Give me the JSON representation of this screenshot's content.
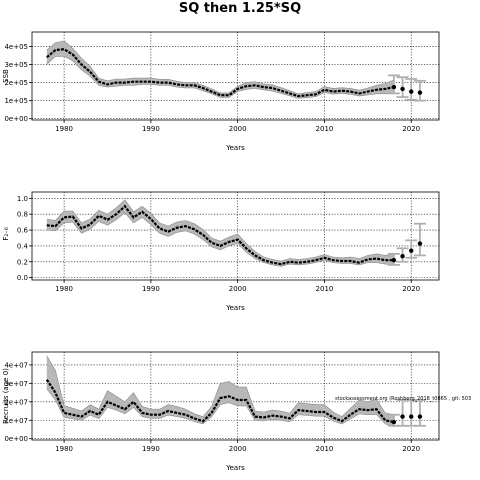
{
  "title": "SQ then 1.25*SQ",
  "chart_data": [
    {
      "type": "line",
      "xlabel": "Years",
      "ylabel": "SSB",
      "xlim": [
        1976.3,
        2023.2
      ],
      "ylim": [
        -7000,
        480000
      ],
      "xticks": [
        1980,
        1990,
        2000,
        2010,
        2020
      ],
      "yticks": [
        0,
        100000,
        200000,
        300000,
        400000
      ],
      "ytick_labels": [
        "0e+00",
        "1e+05",
        "2e+05",
        "3e+05",
        "4e+05"
      ],
      "grid": true,
      "note": "",
      "series": [
        {
          "x": [
            1978,
            1979,
            1980,
            1981,
            1982,
            1983,
            1984,
            1985,
            1986,
            1987,
            1988,
            1989,
            1990,
            1991,
            1992,
            1993,
            1994,
            1995,
            1996,
            1997,
            1998,
            1999,
            2000,
            2001,
            2002,
            2003,
            2004,
            2005,
            2006,
            2007,
            2008,
            2009,
            2010,
            2011,
            2012,
            2013,
            2014,
            2015,
            2016,
            2017,
            2018
          ],
          "values": [
            340000,
            380000,
            385000,
            355000,
            300000,
            260000,
            205000,
            190000,
            200000,
            200000,
            205000,
            205000,
            205000,
            200000,
            200000,
            190000,
            185000,
            185000,
            170000,
            150000,
            130000,
            130000,
            165000,
            180000,
            185000,
            175000,
            170000,
            155000,
            140000,
            125000,
            130000,
            135000,
            160000,
            150000,
            155000,
            150000,
            140000,
            150000,
            160000,
            165000,
            175000
          ],
          "lower": [
            300000,
            345000,
            345000,
            320000,
            270000,
            235000,
            185000,
            175000,
            180000,
            185000,
            185000,
            190000,
            190000,
            185000,
            185000,
            175000,
            170000,
            170000,
            155000,
            138000,
            118000,
            118000,
            150000,
            163000,
            168000,
            160000,
            153000,
            140000,
            127000,
            113000,
            117000,
            122000,
            145000,
            136000,
            140000,
            135000,
            125000,
            132000,
            138000,
            138000,
            140000
          ],
          "upper": [
            380000,
            420000,
            430000,
            390000,
            335000,
            290000,
            225000,
            210000,
            220000,
            220000,
            225000,
            225000,
            225000,
            218000,
            218000,
            207000,
            200000,
            200000,
            185000,
            165000,
            143000,
            143000,
            180000,
            200000,
            205000,
            192000,
            188000,
            172000,
            155000,
            138000,
            145000,
            150000,
            178000,
            168000,
            172000,
            168000,
            158000,
            170000,
            185000,
            195000,
            215000
          ]
        }
      ],
      "projection": {
        "x": [
          2018,
          2019,
          2020,
          2021
        ],
        "values": [
          175000,
          165000,
          150000,
          145000
        ],
        "lower": [
          140000,
          120000,
          105000,
          100000
        ],
        "upper": [
          240000,
          230000,
          220000,
          210000
        ]
      }
    },
    {
      "type": "line",
      "xlabel": "Years",
      "ylabel": "F₂₋₆",
      "xlim": [
        1976.3,
        2023.2
      ],
      "ylim": [
        -0.03,
        1.08
      ],
      "xticks": [
        1980,
        1990,
        2000,
        2010,
        2020
      ],
      "yticks": [
        0.0,
        0.2,
        0.4,
        0.6,
        0.8,
        1.0
      ],
      "ytick_labels": [
        "0.0",
        "0.2",
        "0.4",
        "0.6",
        "0.8",
        "1.0"
      ],
      "grid": true,
      "note": "",
      "series": [
        {
          "x": [
            1978,
            1979,
            1980,
            1981,
            1982,
            1983,
            1984,
            1985,
            1986,
            1987,
            1988,
            1989,
            1990,
            1991,
            1992,
            1993,
            1994,
            1995,
            1996,
            1997,
            1998,
            1999,
            2000,
            2001,
            2002,
            2003,
            2004,
            2005,
            2006,
            2007,
            2008,
            2009,
            2010,
            2011,
            2012,
            2013,
            2014,
            2015,
            2016,
            2017,
            2018
          ],
          "values": [
            0.66,
            0.65,
            0.76,
            0.77,
            0.62,
            0.67,
            0.78,
            0.73,
            0.8,
            0.9,
            0.76,
            0.83,
            0.74,
            0.62,
            0.58,
            0.63,
            0.65,
            0.61,
            0.54,
            0.44,
            0.4,
            0.45,
            0.48,
            0.37,
            0.28,
            0.22,
            0.19,
            0.17,
            0.2,
            0.19,
            0.2,
            0.22,
            0.25,
            0.22,
            0.21,
            0.21,
            0.19,
            0.23,
            0.24,
            0.22,
            0.22
          ],
          "lower": [
            0.6,
            0.59,
            0.69,
            0.7,
            0.56,
            0.61,
            0.71,
            0.66,
            0.73,
            0.82,
            0.69,
            0.76,
            0.67,
            0.56,
            0.52,
            0.57,
            0.59,
            0.55,
            0.48,
            0.39,
            0.35,
            0.4,
            0.43,
            0.32,
            0.24,
            0.19,
            0.16,
            0.14,
            0.17,
            0.16,
            0.17,
            0.19,
            0.22,
            0.19,
            0.18,
            0.18,
            0.16,
            0.19,
            0.19,
            0.17,
            0.16
          ],
          "upper": [
            0.74,
            0.72,
            0.84,
            0.84,
            0.69,
            0.74,
            0.85,
            0.8,
            0.88,
            0.98,
            0.83,
            0.9,
            0.81,
            0.69,
            0.65,
            0.7,
            0.72,
            0.68,
            0.61,
            0.5,
            0.46,
            0.51,
            0.55,
            0.43,
            0.33,
            0.26,
            0.23,
            0.21,
            0.24,
            0.23,
            0.24,
            0.26,
            0.29,
            0.26,
            0.25,
            0.26,
            0.24,
            0.28,
            0.3,
            0.28,
            0.3
          ]
        }
      ],
      "projection": {
        "x": [
          2018,
          2019,
          2020,
          2021
        ],
        "values": [
          0.22,
          0.27,
          0.34,
          0.43
        ],
        "lower": [
          0.16,
          0.2,
          0.25,
          0.28
        ],
        "upper": [
          0.3,
          0.37,
          0.47,
          0.68
        ]
      }
    },
    {
      "type": "line",
      "xlabel": "Years",
      "ylabel": "Recruits (age 0)",
      "xlim": [
        1976.3,
        2023.2
      ],
      "ylim": [
        -700000,
        47000000
      ],
      "xticks": [
        1980,
        1990,
        2000,
        2010,
        2020
      ],
      "yticks": [
        0,
        10000000,
        20000000,
        30000000,
        40000000
      ],
      "ytick_labels": [
        "0e+00",
        "1e+07",
        "2e+07",
        "3e+07",
        "4e+07"
      ],
      "grid": true,
      "note": "stockassessment.org (Roshberg_2018_t0865 , git: 503",
      "series": [
        {
          "x": [
            1978,
            1979,
            1980,
            1981,
            1982,
            1983,
            1984,
            1985,
            1986,
            1987,
            1988,
            1989,
            1990,
            1991,
            1992,
            1993,
            1994,
            1995,
            1996,
            1997,
            1998,
            1999,
            2000,
            2001,
            2002,
            2003,
            2004,
            2005,
            2006,
            2007,
            2008,
            2009,
            2010,
            2011,
            2012,
            2013,
            2014,
            2015,
            2016,
            2017,
            2018
          ],
          "values": [
            32000000,
            25000000,
            14000000,
            13000000,
            12000000,
            15000000,
            13000000,
            20000000,
            18000000,
            16000000,
            20000000,
            14000000,
            13000000,
            13000000,
            15000000,
            14000000,
            13000000,
            11000000,
            9500000,
            14000000,
            22000000,
            23000000,
            21000000,
            21000000,
            12000000,
            11500000,
            12500000,
            12000000,
            11000000,
            15500000,
            15000000,
            14500000,
            14500000,
            11500000,
            9500000,
            13000000,
            16000000,
            15500000,
            16000000,
            10000000,
            9000000
          ],
          "lower": [
            27000000,
            21000000,
            11500000,
            10800000,
            10000000,
            12800000,
            10800000,
            17000000,
            15500000,
            13500000,
            17000000,
            12000000,
            11000000,
            11000000,
            12800000,
            12000000,
            11000000,
            9300000,
            8000000,
            11800000,
            18500000,
            19500000,
            17800000,
            17800000,
            10000000,
            9600000,
            10500000,
            10000000,
            9200000,
            13000000,
            12600000,
            12200000,
            12200000,
            9600000,
            7900000,
            10800000,
            13400000,
            13000000,
            13200000,
            8000000,
            6500000
          ],
          "upper": [
            45000000,
            37000000,
            18000000,
            16500000,
            15000000,
            18500000,
            16000000,
            26000000,
            23000000,
            20000000,
            25000000,
            17500000,
            16000000,
            16000000,
            18500000,
            17500000,
            16000000,
            13500000,
            12000000,
            17500000,
            30000000,
            31000000,
            28000000,
            28000000,
            15000000,
            14500000,
            15500000,
            15000000,
            13800000,
            19500000,
            19000000,
            18500000,
            18500000,
            14500000,
            12000000,
            16500000,
            21000000,
            20000000,
            21500000,
            14000000,
            13000000
          ]
        }
      ],
      "projection": {
        "x": [
          2018,
          2019,
          2020,
          2021
        ],
        "values": [
          9000000,
          12000000,
          12000000,
          12000000
        ],
        "lower": [
          7000000,
          7000000,
          7000000,
          7000000
        ],
        "upper": [
          13000000,
          21000000,
          21000000,
          21000000
        ]
      }
    }
  ]
}
